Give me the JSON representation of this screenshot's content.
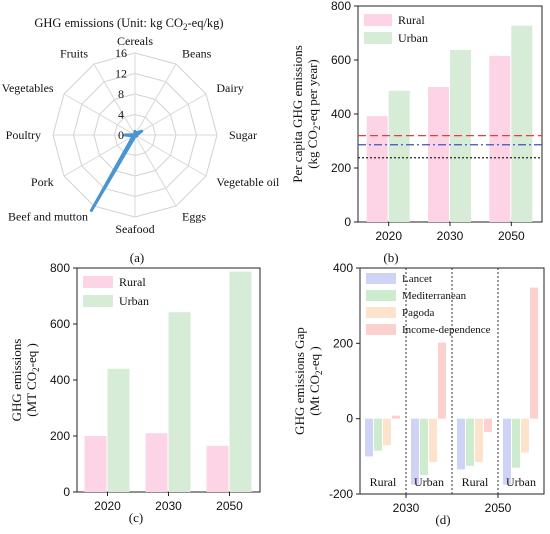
{
  "panel_labels": [
    "(a)",
    "(b)",
    "(c)",
    "(d)"
  ],
  "colors": {
    "rural": "#fcd4e6",
    "urban": "#d6ecd6",
    "radar_line": "#4a94cf",
    "lancet": "#cfd4f7",
    "mediterranean": "#cdebcd",
    "pagoda": "#fde2cc",
    "income": "#fdd0d0",
    "ref_red": "#e4403a",
    "ref_blue": "#3b52c9",
    "ref_black": "#222222"
  },
  "chart_data": [
    {
      "id": "a",
      "type": "radar",
      "title": "GHG emissions (Unit: kg CO2-eq/kg)",
      "title_parts": {
        "pre": "GHG emissions (Unit: kg CO",
        "sub": "2",
        "post": "-eq/kg)"
      },
      "categories": [
        "Cereals",
        "Beans",
        "Dairy",
        "Sugar",
        "Vegetable oil",
        "Eggs",
        "Seafood",
        "Beef and mutton",
        "Pork",
        "Poultry",
        "Vegetables",
        "Fruits"
      ],
      "values": [
        0.7,
        0.4,
        1.5,
        0.3,
        0.4,
        0.3,
        0.3,
        17,
        0.4,
        2.0,
        0.1,
        0.1
      ],
      "rlim": [
        0,
        16
      ],
      "ticks": [
        "0",
        "4",
        "8",
        "12",
        "16"
      ],
      "grid": true
    },
    {
      "id": "b",
      "type": "bar",
      "categories": [
        "2020",
        "2030",
        "2050"
      ],
      "series": [
        {
          "name": "Rural",
          "values": [
            392,
            500,
            615
          ]
        },
        {
          "name": "Urban",
          "values": [
            486,
            637,
            727
          ]
        }
      ],
      "reference_lines": [
        320,
        286,
        238
      ],
      "ylabel_line1": "Per capita GHG emissions",
      "ylabel_line2": "(kg CO2-eq per year)",
      "ylabel_parts": {
        "pre": "(kg CO",
        "sub": "2",
        "post": "-eq per year)"
      },
      "ylim": [
        0,
        800
      ],
      "yticks": [
        "0",
        "200",
        "400",
        "600",
        "800"
      ],
      "legend": "top-left",
      "grid": false
    },
    {
      "id": "c",
      "type": "bar",
      "categories": [
        "2020",
        "2030",
        "2050"
      ],
      "series": [
        {
          "name": "Rural",
          "values": [
            200,
            210,
            165
          ]
        },
        {
          "name": "Urban",
          "values": [
            440,
            642,
            787
          ]
        }
      ],
      "ylabel_line1": "GHG emissions",
      "ylabel_line2": "(MT CO2-eq )",
      "ylabel_parts": {
        "pre": "(MT CO",
        "sub": "2",
        "post": "-eq )"
      },
      "ylim": [
        0,
        800
      ],
      "yticks": [
        "0",
        "200",
        "400",
        "600",
        "800"
      ],
      "legend": "top-left",
      "grid": false
    },
    {
      "id": "d",
      "type": "bar",
      "groups": [
        {
          "label": "Rural",
          "year": "2030"
        },
        {
          "label": "Urban",
          "year": "2030"
        },
        {
          "label": "Rural",
          "year": "2050"
        },
        {
          "label": "Urban",
          "year": "2050"
        }
      ],
      "year_labels": [
        "2030",
        "2050"
      ],
      "series": [
        {
          "name": "Lancet",
          "values": [
            -100,
            -175,
            -135,
            -175
          ]
        },
        {
          "name": "Mediterranean",
          "values": [
            -85,
            -150,
            -125,
            -130
          ]
        },
        {
          "name": "Pagoda",
          "values": [
            -70,
            -115,
            -115,
            -90
          ]
        },
        {
          "name": "Income-dependence",
          "values": [
            8,
            202,
            -35,
            348
          ]
        }
      ],
      "ylabel_line1": "GHG emissions Gap",
      "ylabel_line2": "(Mt CO2-eq )",
      "ylabel_parts": {
        "pre": "(Mt CO",
        "sub": "2",
        "post": "-eq )"
      },
      "ylim": [
        -200,
        400
      ],
      "yticks": [
        "-200",
        "0",
        "200",
        "400"
      ],
      "legend": "top-left",
      "grid": false
    }
  ]
}
